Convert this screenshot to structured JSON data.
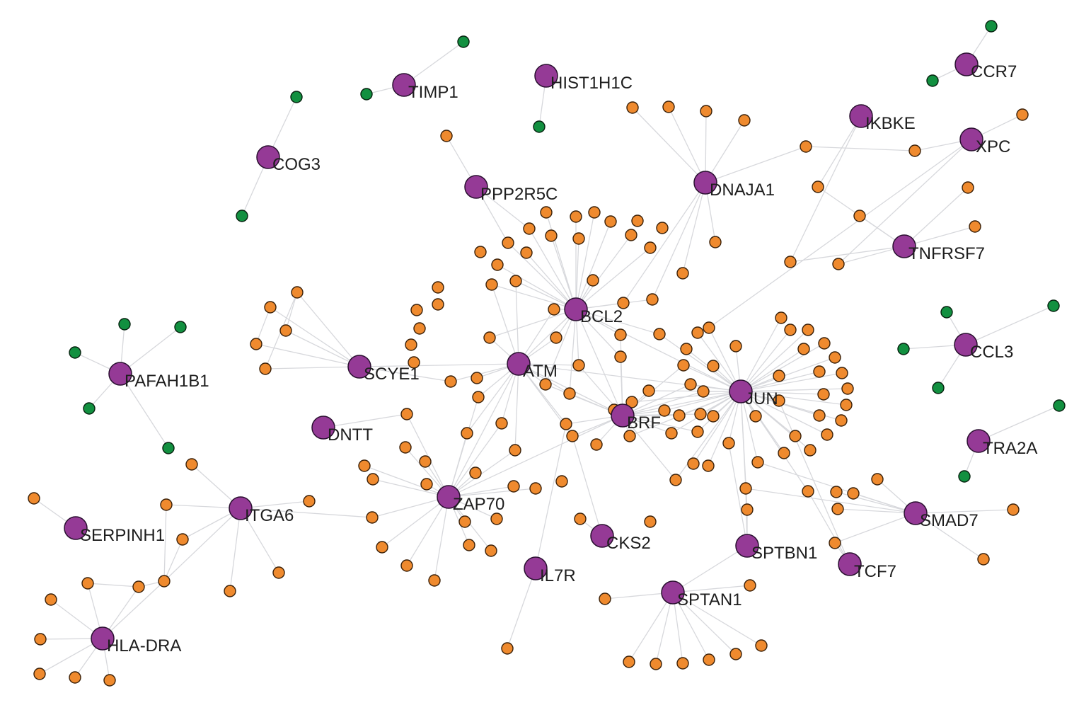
{
  "colors": {
    "hub": "#953a96",
    "partner": "#ef8a2e",
    "other": "#129040",
    "edge": "#d7d8dc"
  },
  "hubs": [
    {
      "id": "TIMP1",
      "label": "TIMP1"
    },
    {
      "id": "HIST1H1C",
      "label": "HIST1H1C"
    },
    {
      "id": "CCR7",
      "label": "CCR7"
    },
    {
      "id": "COG3",
      "label": "COG3"
    },
    {
      "id": "IKBKE",
      "label": "IKBKE"
    },
    {
      "id": "XPC",
      "label": "XPC"
    },
    {
      "id": "PPP2R5C",
      "label": "PPP2R5C"
    },
    {
      "id": "DNAJA1",
      "label": "DNAJA1"
    },
    {
      "id": "TNFRSF7",
      "label": "TNFRSF7"
    },
    {
      "id": "BCL2",
      "label": "BCL2"
    },
    {
      "id": "CCL3",
      "label": "CCL3"
    },
    {
      "id": "PAFAH1B1",
      "label": "PAFAH1B1"
    },
    {
      "id": "SCYE1",
      "label": "SCYE1"
    },
    {
      "id": "ATM",
      "label": "ATM"
    },
    {
      "id": "JUN",
      "label": "JUN"
    },
    {
      "id": "BRF",
      "label": "BRF"
    },
    {
      "id": "DNTT",
      "label": "DNTT"
    },
    {
      "id": "TRA2A",
      "label": "TRA2A"
    },
    {
      "id": "ITGA6",
      "label": "ITGA6"
    },
    {
      "id": "ZAP70",
      "label": "ZAP70"
    },
    {
      "id": "SERPINH1",
      "label": "SERPINH1"
    },
    {
      "id": "SMAD7",
      "label": "SMAD7"
    },
    {
      "id": "CKS2",
      "label": "CKS2"
    },
    {
      "id": "SPTBN1",
      "label": "SPTBN1"
    },
    {
      "id": "TCF7",
      "label": "TCF7"
    },
    {
      "id": "IL7R",
      "label": "IL7R"
    },
    {
      "id": "SPTAN1",
      "label": "SPTAN1"
    },
    {
      "id": "HLA-DRA",
      "label": "HLA-DRA"
    }
  ]
}
